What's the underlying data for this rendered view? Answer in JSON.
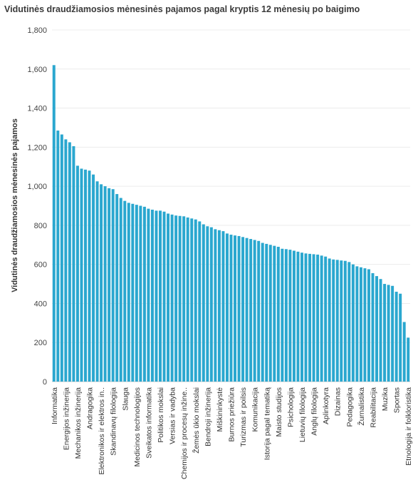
{
  "chart_data": {
    "type": "bar",
    "title": "Vidutinės draudžiamosios mėnesinės pajamos pagal kryptis 12 mėnesių po baigimo",
    "ylabel": "Vidutinės draudžiamosios mėnesinės pajamos",
    "xlabel": "",
    "ylim": [
      0,
      1800
    ],
    "yticks": [
      0,
      200,
      400,
      600,
      800,
      1000,
      1200,
      1400,
      1600,
      1800
    ],
    "ytick_labels": [
      "0",
      "200",
      "400",
      "600",
      "800",
      "1,000",
      "1,200",
      "1,400",
      "1,600",
      "1,800"
    ],
    "grid": true,
    "bar_color": "#2aa7cf",
    "labeled_categories": [
      "Informatika",
      "Energijos inžinerija",
      "Mechanikos inžinerija",
      "Andragogika",
      "Elektronikos ir elektros in..",
      "Skandinavų filologija",
      "Slauga",
      "Medicinos technologijos",
      "Sveikatos informatika",
      "Politikos mokslai",
      "Versias ir vadyba",
      "Chemijos ir procesų inžine..",
      "Žemės ūkio mokslai",
      "Bendroji inžinerija",
      "Miškininkystė",
      "Burnos priežiūra",
      "Turizmas ir poilsis",
      "Komunikacija",
      "Istorija pagal tematiką",
      "Maisto studijos",
      "Psichologija",
      "Lietuvių filologija",
      "Anglų filologija",
      "Aplinkotyra",
      "Dizainas",
      "Pedagogika",
      "Žurnalistika",
      "Reabilitacija",
      "Muzika",
      "Sportas",
      "Etnologija ir folkloristika"
    ],
    "label_every": 3,
    "values": [
      1620,
      1285,
      1265,
      1240,
      1225,
      1205,
      1105,
      1090,
      1085,
      1080,
      1060,
      1025,
      1010,
      1000,
      990,
      985,
      960,
      940,
      925,
      915,
      910,
      905,
      900,
      895,
      885,
      880,
      875,
      875,
      870,
      860,
      855,
      850,
      848,
      846,
      840,
      835,
      830,
      820,
      805,
      795,
      790,
      780,
      775,
      770,
      758,
      752,
      748,
      745,
      740,
      735,
      730,
      725,
      720,
      710,
      705,
      700,
      695,
      690,
      680,
      678,
      675,
      670,
      665,
      660,
      656,
      654,
      652,
      650,
      645,
      640,
      630,
      625,
      623,
      620,
      618,
      612,
      600,
      590,
      585,
      580,
      575,
      555,
      540,
      525,
      500,
      495,
      490,
      460,
      450,
      305,
      225
    ]
  }
}
